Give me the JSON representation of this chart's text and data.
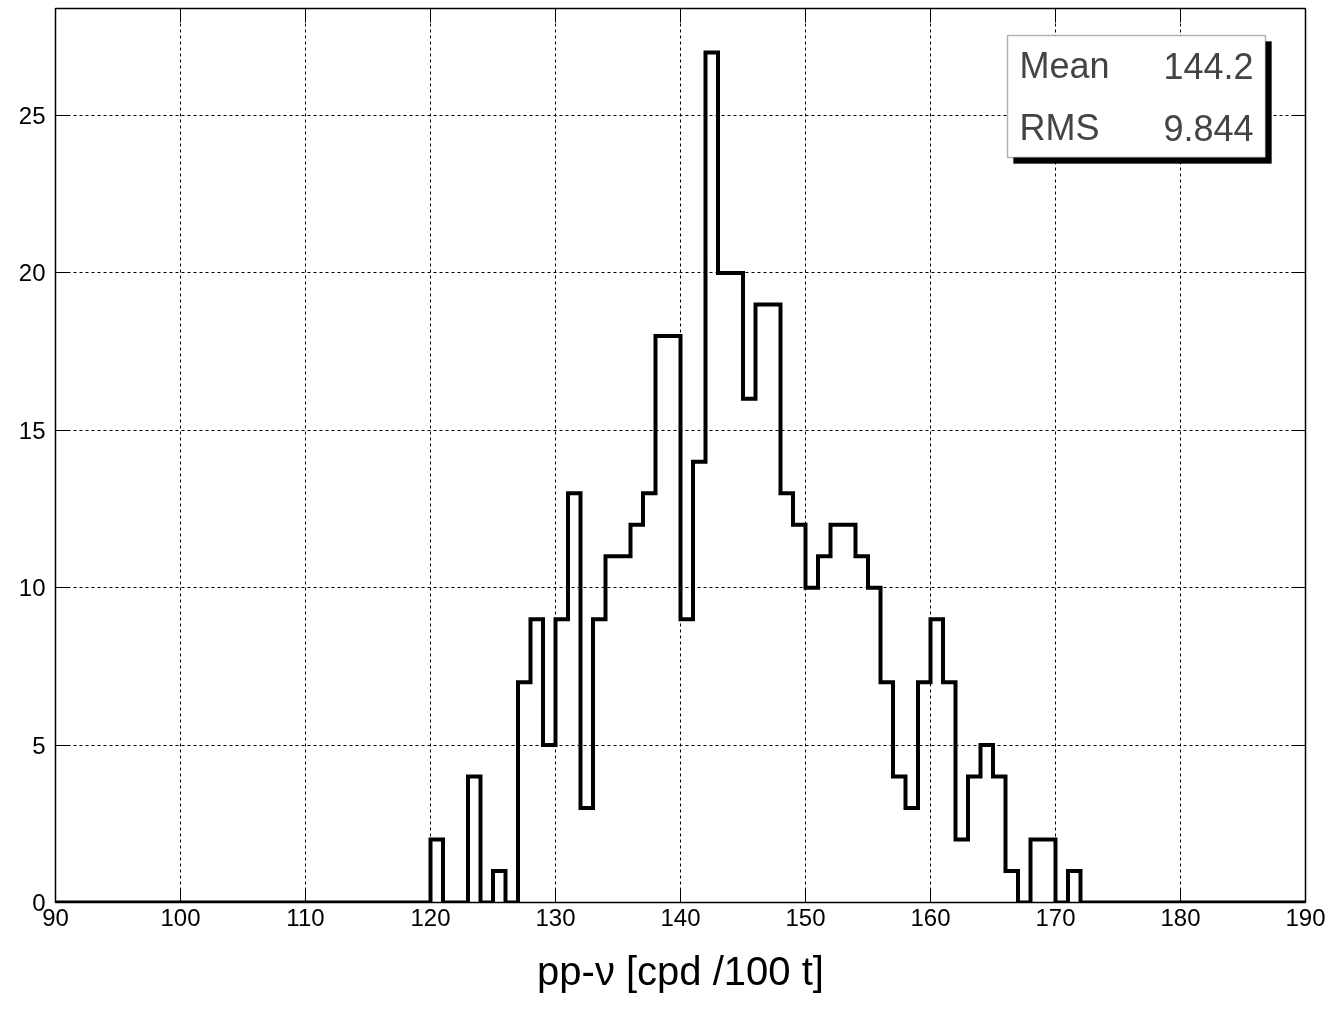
{
  "chart_data": {
    "type": "histogram",
    "xlabel": "pp-ν [cpd /100 t]",
    "bins": [
      90,
      91,
      92,
      93,
      94,
      95,
      96,
      97,
      98,
      99,
      100,
      101,
      102,
      103,
      104,
      105,
      106,
      107,
      108,
      109,
      110,
      111,
      112,
      113,
      114,
      115,
      116,
      117,
      118,
      119,
      120,
      121,
      122,
      123,
      124,
      125,
      126,
      127,
      128,
      129,
      130,
      131,
      132,
      133,
      134,
      135,
      136,
      137,
      138,
      139,
      140,
      141,
      142,
      143,
      144,
      145,
      146,
      147,
      148,
      149,
      150,
      151,
      152,
      153,
      154,
      155,
      156,
      157,
      158,
      159,
      160,
      161,
      162,
      163,
      164,
      165,
      166,
      167,
      168,
      169,
      170,
      171,
      172,
      173,
      174,
      175,
      176,
      177,
      178,
      179,
      180,
      181,
      182,
      183,
      184,
      185,
      186,
      187,
      188,
      189,
      190
    ],
    "values": [
      0,
      0,
      0,
      0,
      0,
      0,
      0,
      0,
      0,
      0,
      0,
      0,
      0,
      0,
      0,
      0,
      0,
      0,
      0,
      0,
      0,
      0,
      0,
      0,
      0,
      0,
      0,
      0,
      0,
      0,
      2,
      0,
      0,
      4,
      0,
      1,
      0,
      7,
      9,
      5,
      9,
      13,
      3,
      9,
      11,
      11,
      12,
      13,
      18,
      18,
      9,
      14,
      27,
      20,
      20,
      16,
      19,
      19,
      13,
      12,
      10,
      11,
      12,
      12,
      11,
      10,
      7,
      4,
      3,
      7,
      9,
      7,
      2,
      4,
      5,
      4,
      1,
      0,
      2,
      2,
      0,
      1,
      0,
      0,
      0,
      0,
      0,
      0,
      0,
      0,
      0,
      0,
      0,
      0,
      0,
      0,
      0,
      0,
      0,
      0
    ],
    "color": "#000000",
    "xlim": [
      90,
      190
    ],
    "ylim": [
      0,
      28.4
    ],
    "xticks": [
      90,
      100,
      110,
      120,
      130,
      140,
      150,
      160,
      170,
      180,
      190
    ],
    "yticks": [
      0,
      5,
      10,
      15,
      20,
      25
    ],
    "grid": true,
    "annotations": [
      "Mean",
      "144.2",
      "RMS",
      "9.844"
    ]
  }
}
